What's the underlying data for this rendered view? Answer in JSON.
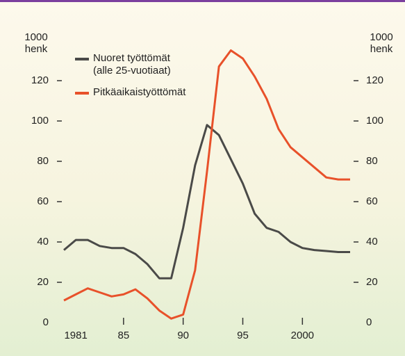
{
  "chart_data": {
    "type": "line",
    "ylabel": "1000 henk",
    "y2label": "1000 henk",
    "x": [
      1980,
      1981,
      1982,
      1983,
      1984,
      1985,
      1986,
      1987,
      1988,
      1989,
      1990,
      1991,
      1992,
      1993,
      1994,
      1995,
      1996,
      1997,
      1998,
      1999,
      2000,
      2001,
      2002,
      2003,
      2004
    ],
    "series": [
      {
        "name": "Nuoret työttömät (alle 25-vuotiaat)",
        "color": "#4a4a48",
        "values": [
          36,
          41,
          41,
          38,
          37,
          37,
          34,
          29,
          22,
          22,
          47,
          78,
          98,
          93,
          81,
          69,
          54,
          47,
          45,
          40,
          37,
          36,
          35.5,
          35,
          35
        ]
      },
      {
        "name": "Pitkäaikaistyöttömät",
        "color": "#e8512a",
        "values": [
          11,
          14,
          17,
          15,
          13,
          14,
          16.5,
          12,
          6,
          2,
          4,
          26,
          75,
          127,
          135,
          131,
          122,
          111,
          96,
          87,
          82,
          77,
          72,
          71,
          71
        ]
      }
    ],
    "xlim": [
      1980,
      2004
    ],
    "xticks": [
      1981,
      {
        "value": 1985,
        "label": "85"
      },
      {
        "value": 1990,
        "label": "90"
      },
      {
        "value": 1995,
        "label": "95"
      },
      2000
    ],
    "ylim": [
      0,
      140
    ],
    "yticks": [
      0,
      20,
      40,
      60,
      80,
      100,
      120
    ],
    "y2lim": [
      0,
      140
    ],
    "y2ticks": [
      0,
      20,
      40,
      60,
      80,
      100,
      120
    ]
  }
}
